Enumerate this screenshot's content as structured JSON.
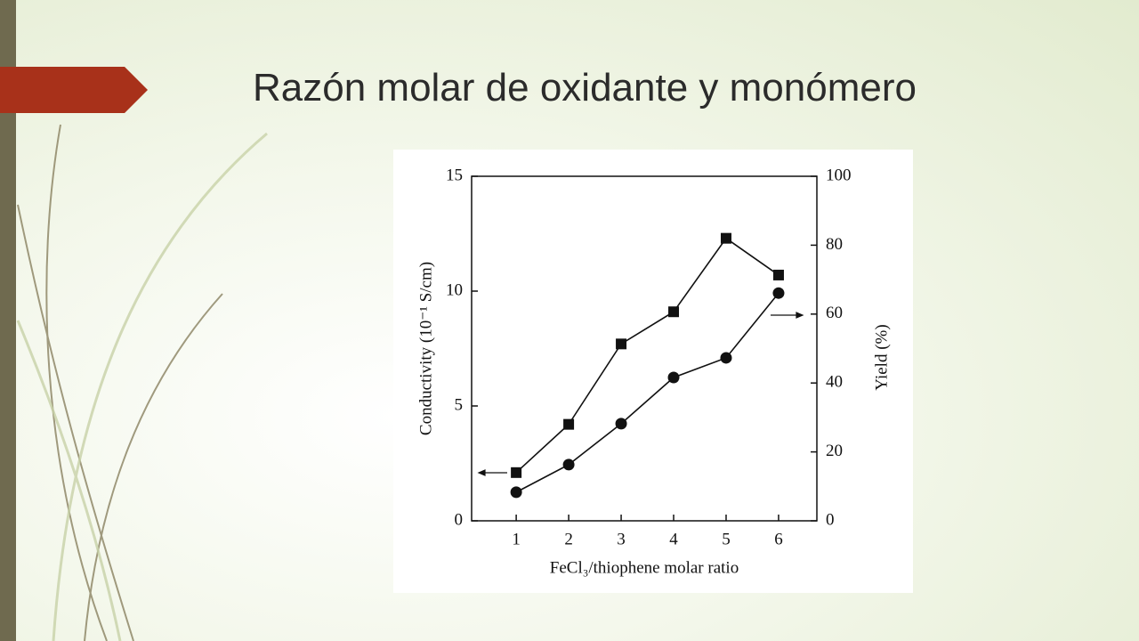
{
  "slide": {
    "title": "Razón molar de oxidante y monómero"
  },
  "chart_data": {
    "type": "line",
    "x_label": "FeCl₃/thiophene molar ratio",
    "y_label": "Conductivity (10⁻¹ S/cm)",
    "y2_label": "Yield (%)",
    "x": [
      1,
      2,
      3,
      4,
      5,
      6
    ],
    "xlim": [
      0.15,
      6.73
    ],
    "xticks": [
      1,
      2,
      3,
      4,
      5,
      6
    ],
    "ylim": [
      0,
      15
    ],
    "yticks": [
      0,
      5,
      10,
      15
    ],
    "y2lim": [
      0,
      100
    ],
    "y2ticks": [
      0,
      20,
      40,
      60,
      80,
      100
    ],
    "series": [
      {
        "color": "#111111",
        "marker": "square",
        "values": [
          2.1,
          4.2,
          7.7,
          9.1,
          12.3,
          10.7
        ]
      },
      {
        "color": "#111111",
        "marker": "circle",
        "axis": "y2",
        "values": [
          8.3,
          16.3,
          28.2,
          41.6,
          47.3,
          66.1
        ]
      }
    ]
  }
}
